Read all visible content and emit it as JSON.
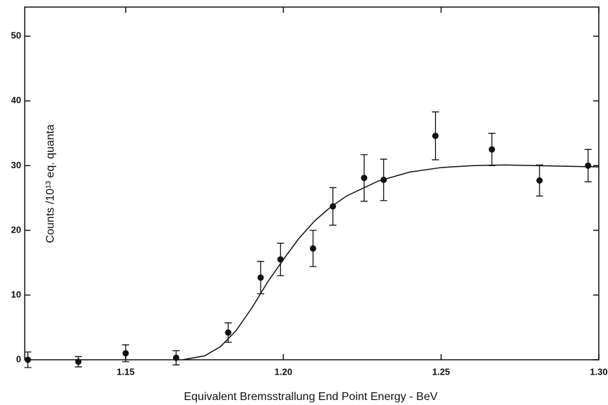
{
  "chart_data": {
    "type": "scatter",
    "xlabel": "Equivalent Bremsstrallung End Point Energy - BeV",
    "ylabel": "Counts /10¹³ eq. quanta",
    "x": [
      1.119,
      1.135,
      1.15,
      1.166,
      1.1825,
      1.1928,
      1.1991,
      1.2094,
      1.2157,
      1.2256,
      1.2318,
      1.2482,
      1.2661,
      1.2812,
      1.2966
    ],
    "values": [
      0,
      -0.3,
      1.0,
      0.3,
      4.2,
      12.7,
      15.5,
      17.2,
      23.7,
      28.1,
      27.8,
      34.6,
      32.5,
      27.7,
      30.0
    ],
    "errors": [
      1.2,
      0.8,
      1.3,
      1.1,
      1.5,
      2.5,
      2.5,
      2.8,
      2.9,
      3.6,
      3.2,
      3.7,
      2.5,
      2.4,
      2.5
    ],
    "color": "#111111",
    "curve": {
      "x": [
        1.168,
        1.175,
        1.18,
        1.185,
        1.19,
        1.195,
        1.2,
        1.205,
        1.21,
        1.215,
        1.22,
        1.23,
        1.24,
        1.25,
        1.26,
        1.27,
        1.28,
        1.29,
        1.3
      ],
      "y": [
        0,
        0.6,
        2,
        4.5,
        8,
        12,
        15.5,
        18.8,
        21.5,
        23.6,
        25.3,
        27.6,
        29,
        29.7,
        30,
        30.1,
        30,
        29.9,
        29.8
      ]
    },
    "xlim": [
      1.118,
      1.3
    ],
    "ylim": [
      0,
      54.5
    ],
    "xticks": [
      1.15,
      {
        "value": 1.2,
        "label": "1.20"
      },
      1.25,
      {
        "value": 1.3,
        "label": "1.30"
      }
    ],
    "yticks": [
      0,
      10,
      20,
      30,
      40,
      50
    ]
  }
}
